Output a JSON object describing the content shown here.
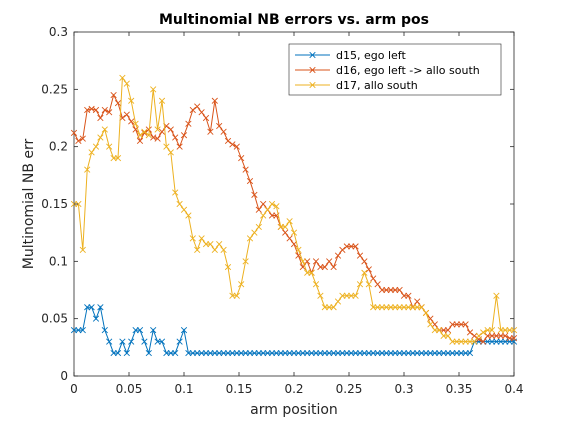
{
  "chart_data": {
    "type": "line",
    "title": "Multinomial NB errors vs. arm pos",
    "xlabel": "arm position",
    "ylabel": "Multinomial NB err",
    "xlim": [
      0,
      0.4
    ],
    "ylim": [
      0,
      0.3
    ],
    "xticks": [
      0,
      0.05,
      0.1,
      0.15,
      0.2,
      0.25,
      0.3,
      0.35,
      0.4
    ],
    "xtick_labels": [
      "0",
      "0.05",
      "0.1",
      "0.15",
      "0.2",
      "0.25",
      "0.3",
      "0.35",
      "0.4"
    ],
    "yticks": [
      0,
      0.05,
      0.1,
      0.15,
      0.2,
      0.25,
      0.3
    ],
    "ytick_labels": [
      "0",
      "0.05",
      "0.1",
      "0.15",
      "0.2",
      "0.25",
      "0.3"
    ],
    "grid": false,
    "legend_position": "top-right",
    "marker": "x",
    "x": [
      0.0,
      0.004,
      0.008,
      0.012,
      0.016,
      0.02,
      0.024,
      0.028,
      0.032,
      0.036,
      0.04,
      0.044,
      0.048,
      0.052,
      0.056,
      0.06,
      0.064,
      0.068,
      0.072,
      0.076,
      0.08,
      0.084,
      0.088,
      0.092,
      0.096,
      0.1,
      0.104,
      0.108,
      0.112,
      0.116,
      0.12,
      0.124,
      0.128,
      0.132,
      0.136,
      0.14,
      0.144,
      0.148,
      0.152,
      0.156,
      0.16,
      0.164,
      0.168,
      0.172,
      0.176,
      0.18,
      0.184,
      0.188,
      0.192,
      0.196,
      0.2,
      0.204,
      0.208,
      0.212,
      0.216,
      0.22,
      0.224,
      0.228,
      0.232,
      0.236,
      0.24,
      0.244,
      0.248,
      0.252,
      0.256,
      0.26,
      0.264,
      0.268,
      0.272,
      0.276,
      0.28,
      0.284,
      0.288,
      0.292,
      0.296,
      0.3,
      0.304,
      0.308,
      0.312,
      0.316,
      0.32,
      0.324,
      0.328,
      0.332,
      0.336,
      0.34,
      0.344,
      0.348,
      0.352,
      0.356,
      0.36,
      0.364,
      0.368,
      0.372,
      0.376,
      0.38,
      0.384,
      0.388,
      0.392,
      0.396,
      0.4
    ],
    "series": [
      {
        "name": "d15, ego left",
        "color": "#0072BD",
        "values": [
          0.04,
          0.04,
          0.04,
          0.06,
          0.06,
          0.05,
          0.06,
          0.04,
          0.03,
          0.02,
          0.02,
          0.03,
          0.02,
          0.03,
          0.04,
          0.04,
          0.03,
          0.02,
          0.04,
          0.03,
          0.03,
          0.02,
          0.02,
          0.02,
          0.03,
          0.04,
          0.02,
          0.02,
          0.02,
          0.02,
          0.02,
          0.02,
          0.02,
          0.02,
          0.02,
          0.02,
          0.02,
          0.02,
          0.02,
          0.02,
          0.02,
          0.02,
          0.02,
          0.02,
          0.02,
          0.02,
          0.02,
          0.02,
          0.02,
          0.02,
          0.02,
          0.02,
          0.02,
          0.02,
          0.02,
          0.02,
          0.02,
          0.02,
          0.02,
          0.02,
          0.02,
          0.02,
          0.02,
          0.02,
          0.02,
          0.02,
          0.02,
          0.02,
          0.02,
          0.02,
          0.02,
          0.02,
          0.02,
          0.02,
          0.02,
          0.02,
          0.02,
          0.02,
          0.02,
          0.02,
          0.02,
          0.02,
          0.02,
          0.02,
          0.02,
          0.02,
          0.02,
          0.02,
          0.02,
          0.02,
          0.02,
          0.03,
          0.03,
          0.03,
          0.03,
          0.03,
          0.03,
          0.03,
          0.03,
          0.03,
          0.03
        ]
      },
      {
        "name": "d16, ego left -> allo south",
        "color": "#D95319",
        "values": [
          0.212,
          0.205,
          0.207,
          0.232,
          0.233,
          0.232,
          0.225,
          0.232,
          0.23,
          0.245,
          0.238,
          0.225,
          0.228,
          0.222,
          0.215,
          0.205,
          0.212,
          0.215,
          0.208,
          0.207,
          0.213,
          0.218,
          0.215,
          0.208,
          0.2,
          0.21,
          0.22,
          0.232,
          0.235,
          0.23,
          0.225,
          0.213,
          0.24,
          0.218,
          0.213,
          0.205,
          0.202,
          0.2,
          0.19,
          0.18,
          0.17,
          0.158,
          0.145,
          0.15,
          0.145,
          0.14,
          0.14,
          0.13,
          0.125,
          0.12,
          0.115,
          0.105,
          0.095,
          0.1,
          0.09,
          0.1,
          0.095,
          0.095,
          0.1,
          0.095,
          0.105,
          0.11,
          0.113,
          0.113,
          0.113,
          0.105,
          0.1,
          0.093,
          0.085,
          0.08,
          0.075,
          0.075,
          0.075,
          0.075,
          0.075,
          0.07,
          0.07,
          0.06,
          0.065,
          0.06,
          0.055,
          0.05,
          0.045,
          0.04,
          0.04,
          0.04,
          0.045,
          0.045,
          0.045,
          0.045,
          0.038,
          0.035,
          0.032,
          0.03,
          0.035,
          0.035,
          0.035,
          0.035,
          0.035,
          0.033,
          0.033
        ]
      },
      {
        "name": "d17, allo south",
        "color": "#EDB120",
        "values": [
          0.15,
          0.15,
          0.11,
          0.18,
          0.195,
          0.2,
          0.208,
          0.215,
          0.2,
          0.19,
          0.19,
          0.26,
          0.255,
          0.24,
          0.22,
          0.21,
          0.213,
          0.21,
          0.25,
          0.215,
          0.24,
          0.2,
          0.195,
          0.16,
          0.15,
          0.145,
          0.14,
          0.12,
          0.11,
          0.12,
          0.115,
          0.115,
          0.11,
          0.115,
          0.11,
          0.095,
          0.07,
          0.07,
          0.08,
          0.1,
          0.12,
          0.125,
          0.13,
          0.14,
          0.145,
          0.15,
          0.148,
          0.13,
          0.13,
          0.135,
          0.125,
          0.11,
          0.1,
          0.09,
          0.09,
          0.08,
          0.07,
          0.06,
          0.06,
          0.06,
          0.065,
          0.07,
          0.07,
          0.07,
          0.07,
          0.08,
          0.09,
          0.08,
          0.06,
          0.06,
          0.06,
          0.06,
          0.06,
          0.06,
          0.06,
          0.06,
          0.06,
          0.06,
          0.06,
          0.06,
          0.055,
          0.045,
          0.04,
          0.04,
          0.035,
          0.035,
          0.03,
          0.03,
          0.03,
          0.03,
          0.03,
          0.03,
          0.035,
          0.038,
          0.04,
          0.04,
          0.07,
          0.04,
          0.04,
          0.04,
          0.04
        ]
      }
    ]
  }
}
